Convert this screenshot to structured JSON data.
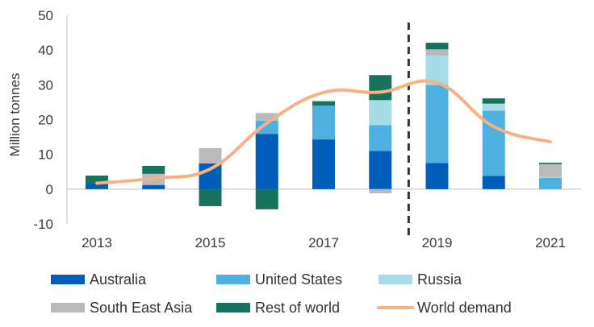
{
  "chart_data": {
    "type": "bar",
    "stacked": true,
    "ylabel": "Million tonnes",
    "ylim": [
      -10,
      50
    ],
    "yticks": [
      -10,
      0,
      10,
      20,
      30,
      40,
      50
    ],
    "categories": [
      "2013",
      "2014",
      "2015",
      "2016",
      "2017",
      "2018",
      "2019",
      "2020",
      "2021"
    ],
    "xtick_labels": [
      "2013",
      "2015",
      "2017",
      "2019",
      "2021"
    ],
    "forecast_divider_between": [
      "2018",
      "2019"
    ],
    "series": [
      {
        "name": "Australia",
        "color": "#005EB8",
        "values": [
          1.8,
          1.2,
          7.4,
          15.9,
          14.3,
          11.0,
          7.5,
          3.8,
          0
        ]
      },
      {
        "name": "United States",
        "color": "#4EB0E0",
        "values": [
          0,
          0,
          0,
          3.8,
          9.7,
          7.4,
          22.5,
          18.8,
          3.2
        ]
      },
      {
        "name": "Russia",
        "color": "#A6DCE6",
        "values": [
          0,
          0,
          0,
          0,
          0,
          7.2,
          8.4,
          2.0,
          0.3
        ]
      },
      {
        "name": "South East Asia",
        "color": "#B8BABC",
        "values": [
          0,
          3.2,
          4.4,
          2.2,
          0,
          -1.2,
          1.8,
          0,
          3.7
        ]
      },
      {
        "name": "Rest of world",
        "color": "#17735F",
        "values": [
          2.1,
          2.3,
          -4.9,
          -5.8,
          1.3,
          7.2,
          1.9,
          1.5,
          0.4
        ]
      }
    ],
    "line": {
      "name": "World demand",
      "color": "#F8B183",
      "values": [
        1.7,
        3.1,
        5.8,
        19.0,
        27.8,
        27.9,
        30.6,
        18.0,
        13.6
      ]
    },
    "legend": [
      "Australia",
      "United States",
      "Russia",
      "South East Asia",
      "Rest of world",
      "World demand"
    ],
    "legend_position": "bottom",
    "grid": false
  }
}
